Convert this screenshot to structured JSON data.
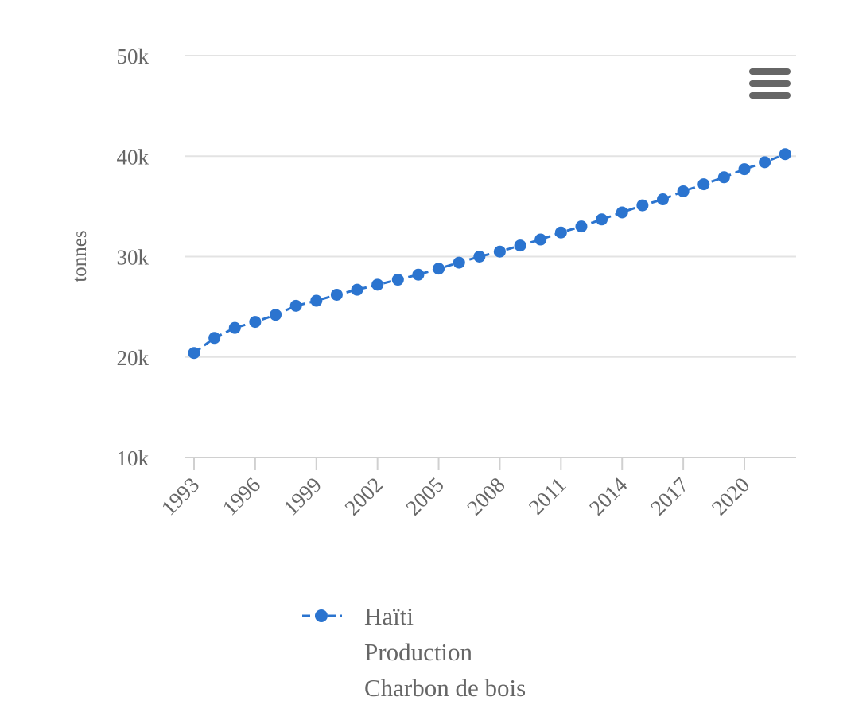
{
  "chart_data": {
    "type": "line",
    "ylabel": "tonnes",
    "ylim": [
      10000,
      50000
    ],
    "yticks": [
      10000,
      20000,
      30000,
      40000,
      50000
    ],
    "ytick_labels": [
      "10k",
      "20k",
      "30k",
      "40k",
      "50k"
    ],
    "xlim": [
      1993,
      2022
    ],
    "xticks": [
      1993,
      1996,
      1999,
      2002,
      2005,
      2008,
      2011,
      2014,
      2017,
      2020
    ],
    "xtick_labels": [
      "1993",
      "1996",
      "1999",
      "2002",
      "2005",
      "2008",
      "2011",
      "2014",
      "2017",
      "2020"
    ],
    "grid": true,
    "legend_position": "bottom",
    "series": [
      {
        "name": "Haïti\nProduction\nCharbon de bois",
        "legend_lines": [
          "Haïti",
          "Production",
          "Charbon de bois"
        ],
        "color": "#2b74cf",
        "line_style": "dashed",
        "marker": "circle",
        "x": [
          1993,
          1994,
          1995,
          1996,
          1997,
          1998,
          1999,
          2000,
          2001,
          2002,
          2003,
          2004,
          2005,
          2006,
          2007,
          2008,
          2009,
          2010,
          2011,
          2012,
          2013,
          2014,
          2015,
          2016,
          2017,
          2018,
          2019,
          2020,
          2021,
          2022
        ],
        "values": [
          20400,
          21900,
          22900,
          23500,
          24200,
          25100,
          25600,
          26200,
          26700,
          27200,
          27700,
          28200,
          28800,
          29400,
          30000,
          30500,
          31100,
          31700,
          32400,
          33000,
          33700,
          34400,
          35100,
          35700,
          36500,
          37200,
          37900,
          38700,
          39400,
          40200
        ]
      }
    ]
  },
  "menu": {
    "icon": "hamburger-menu-icon",
    "color": "#666666"
  }
}
